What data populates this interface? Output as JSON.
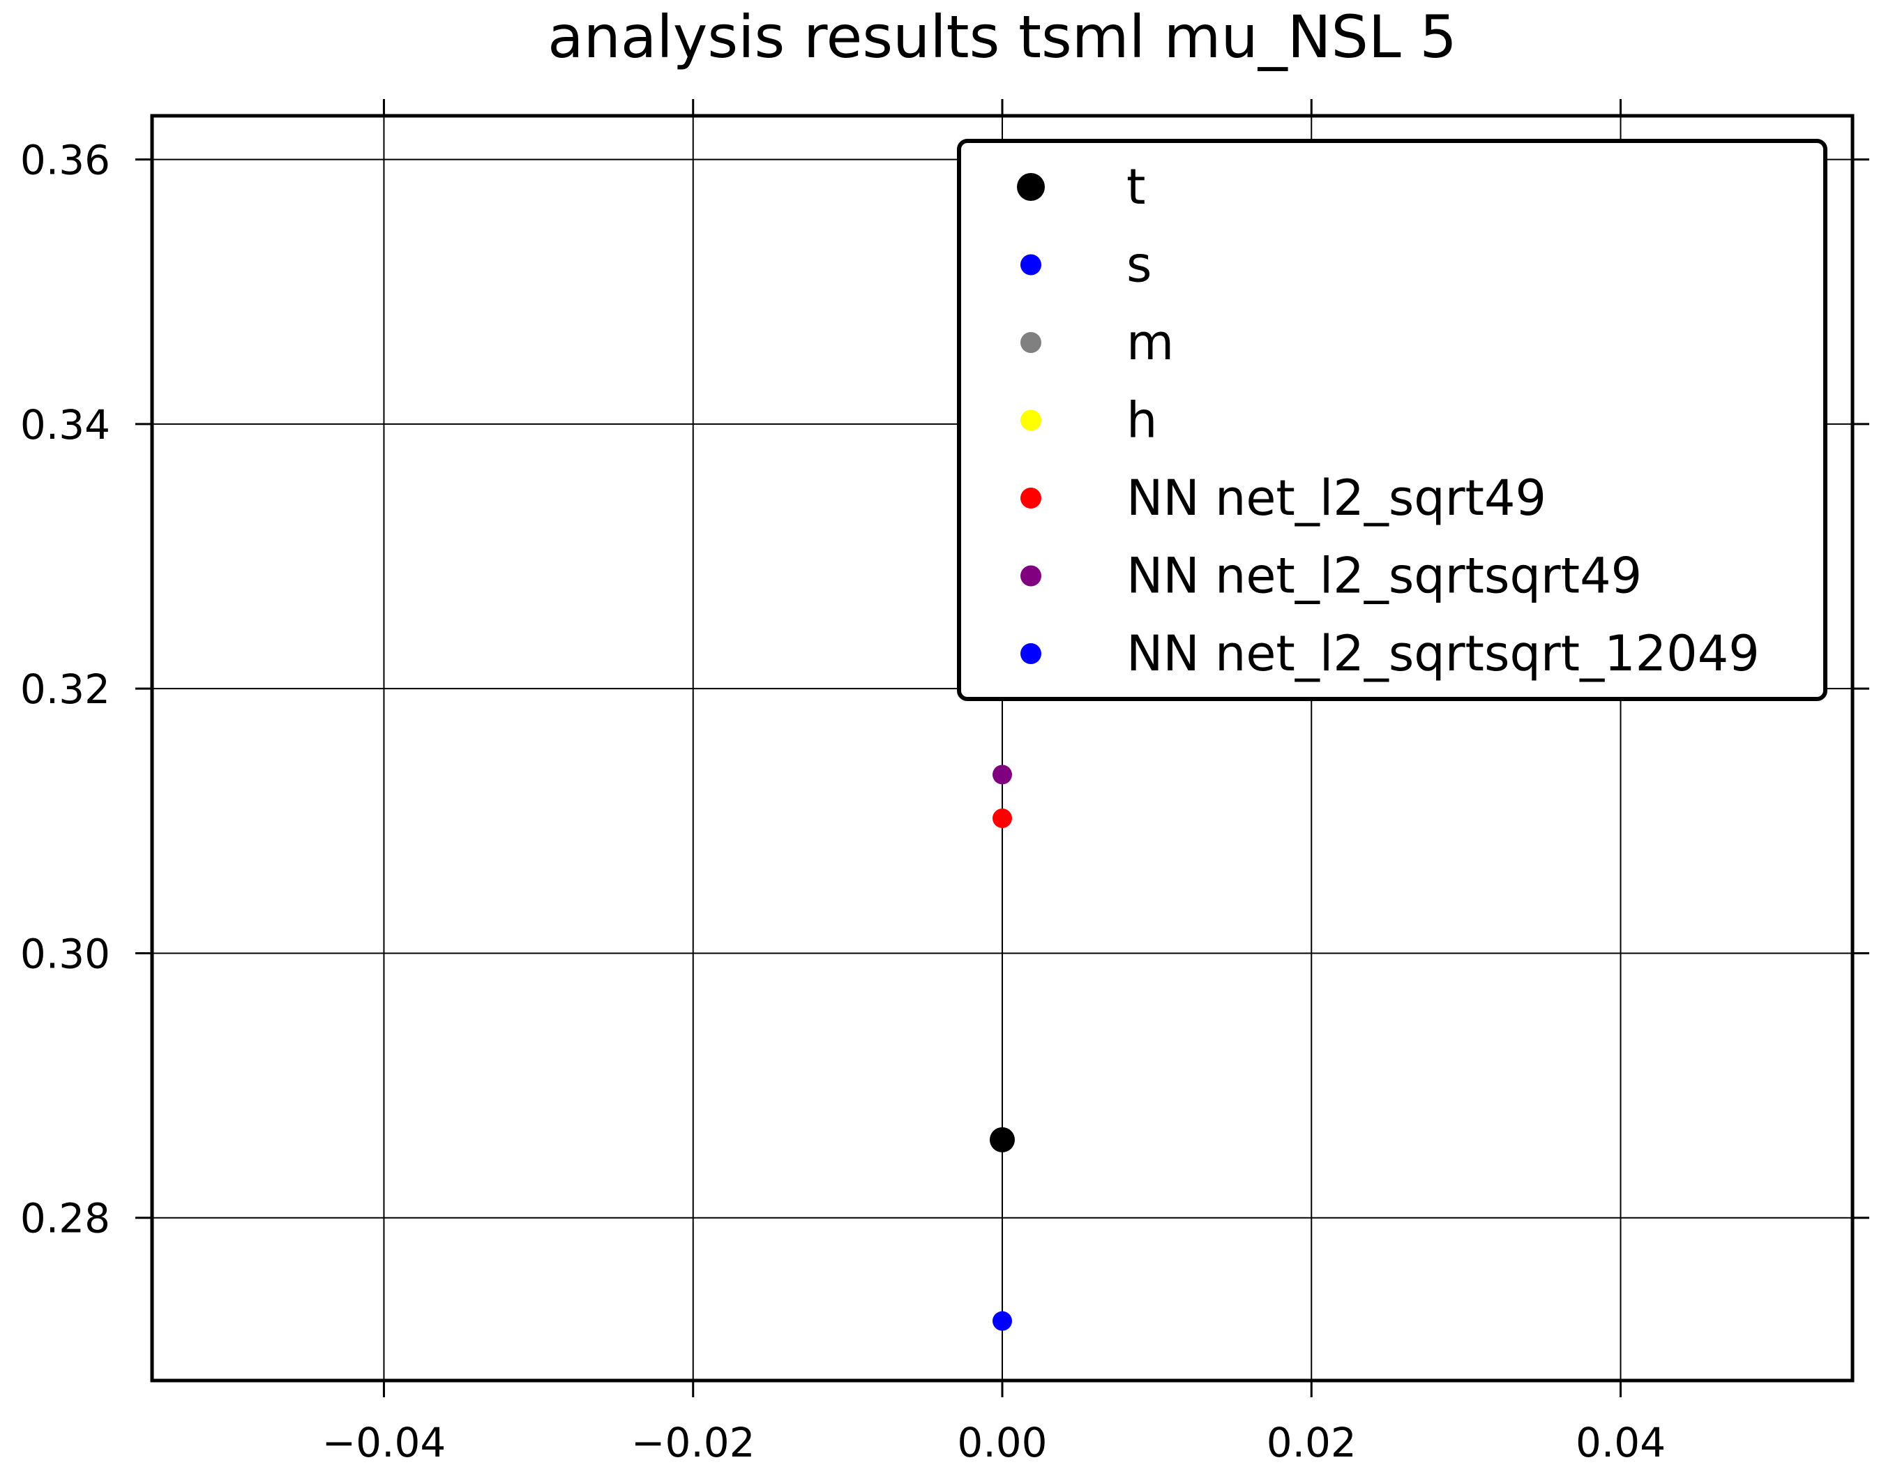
{
  "chart_data": {
    "type": "scatter",
    "title": "analysis results tsml  mu_NSL 5",
    "xlabel": "",
    "ylabel": "",
    "xlim": [
      -0.055,
      0.055
    ],
    "ylim": [
      0.2677,
      0.3633
    ],
    "grid": true,
    "legend_position": "top-right",
    "x_ticks": [
      {
        "value": -0.04,
        "label": "−0.04"
      },
      {
        "value": -0.02,
        "label": "−0.02"
      },
      {
        "value": 0.0,
        "label": "0.00"
      },
      {
        "value": 0.02,
        "label": "0.02"
      },
      {
        "value": 0.04,
        "label": "0.04"
      }
    ],
    "y_ticks": [
      {
        "value": 0.28,
        "label": "0.28"
      },
      {
        "value": 0.3,
        "label": "0.30"
      },
      {
        "value": 0.32,
        "label": "0.32"
      },
      {
        "value": 0.34,
        "label": "0.34"
      },
      {
        "value": 0.36,
        "label": "0.36"
      }
    ],
    "series": [
      {
        "name": "t",
        "color": "#000000",
        "marker": "large",
        "points": [
          {
            "x": 0.0,
            "y": 0.2859
          }
        ]
      },
      {
        "name": "s",
        "color": "#0000ff",
        "marker": "small",
        "points": [
          {
            "x": 0.0,
            "y": 0.2722
          }
        ]
      },
      {
        "name": "m",
        "color": "#808080",
        "marker": "small",
        "points": []
      },
      {
        "name": "h",
        "color": "#ffff00",
        "marker": "small",
        "points": []
      },
      {
        "name": "NN net_l2_sqrt49",
        "color": "#ff0000",
        "marker": "small",
        "points": [
          {
            "x": 0.0,
            "y": 0.3102
          }
        ]
      },
      {
        "name": "NN net_l2_sqrtsqrt49",
        "color": "#800080",
        "marker": "small",
        "points": [
          {
            "x": 0.0,
            "y": 0.3135
          }
        ]
      },
      {
        "name": "NN net_l2_sqrtsqrt_12049",
        "color": "#0000ff",
        "marker": "small",
        "points": []
      }
    ]
  }
}
